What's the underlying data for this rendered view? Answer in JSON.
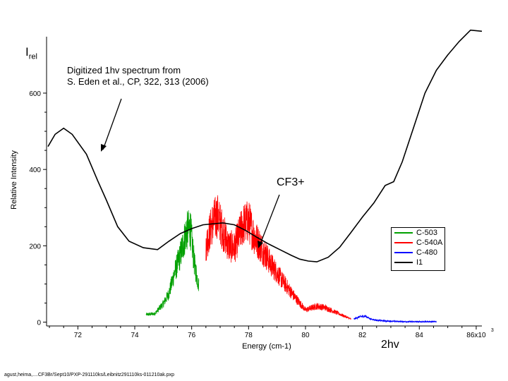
{
  "annotations": {
    "irel_main": "I",
    "irel_sub": "rel",
    "note_line1": "Digitized 1hv spectrum from",
    "note_line2": "S. Eden et al., CP, 322, 313 (2006)",
    "cf3": "CF3+",
    "two_hv": "2hv",
    "footer": "agust,heima,....CF3Br/Sept10/PXP-291110ks/Leibnitz291110ks-011210ak.pxp"
  },
  "colors": {
    "C-503": "#00a000",
    "C-540A": "#ff0000",
    "C-480": "#0000ff",
    "I1": "#000000"
  },
  "chart_data": {
    "type": "line",
    "xlabel": "Energy (cm-1)",
    "ylabel": "Relative Intensity",
    "x_multiplier_label": "x10",
    "x_multiplier_exp": "3",
    "xlim": [
      70.9,
      86.2
    ],
    "ylim": [
      -10,
      770
    ],
    "x_ticks": [
      72,
      74,
      76,
      78,
      80,
      82,
      84,
      86
    ],
    "x_tick_labels": [
      "72",
      "74",
      "76",
      "78",
      "80",
      "82",
      "84",
      "86"
    ],
    "y_ticks": [
      0,
      200,
      400,
      600
    ],
    "y_tick_labels": [
      "0",
      "200",
      "400",
      "600"
    ],
    "legend_position": "lower-right",
    "series": [
      {
        "name": "I1",
        "style": "smooth",
        "x": [
          70.95,
          71.2,
          71.5,
          71.8,
          72.3,
          72.7,
          73.0,
          73.4,
          73.8,
          74.3,
          74.8,
          75.2,
          75.6,
          76.0,
          76.4,
          76.8,
          77.1,
          77.5,
          77.9,
          78.3,
          78.7,
          79.1,
          79.5,
          79.8,
          80.1,
          80.4,
          80.8,
          81.2,
          81.6,
          82.0,
          82.4,
          82.8,
          83.1,
          83.4,
          83.8,
          84.2,
          84.6,
          85.0,
          85.4,
          85.8,
          86.2
        ],
        "y": [
          460,
          492,
          508,
          492,
          440,
          370,
          320,
          250,
          212,
          195,
          190,
          212,
          232,
          245,
          255,
          258,
          260,
          255,
          240,
          222,
          205,
          190,
          175,
          165,
          160,
          158,
          170,
          196,
          235,
          275,
          312,
          358,
          368,
          420,
          510,
          600,
          660,
          700,
          735,
          765,
          762
        ]
      },
      {
        "name": "C-503",
        "style": "noisy",
        "x": [
          74.4,
          74.7,
          75.0,
          75.2,
          75.4,
          75.6,
          75.8,
          75.95,
          76.1,
          76.25
        ],
        "y": [
          20,
          22,
          48,
          75,
          130,
          175,
          235,
          248,
          150,
          95
        ]
      },
      {
        "name": "C-540A",
        "style": "noisy",
        "x": [
          76.5,
          76.7,
          76.9,
          77.1,
          77.3,
          77.5,
          77.8,
          78.0,
          78.2,
          78.5,
          78.8,
          79.2,
          79.6,
          80.0,
          80.4,
          80.7,
          81.0,
          81.3,
          81.6
        ],
        "y": [
          200,
          255,
          280,
          238,
          200,
          195,
          255,
          265,
          225,
          190,
          150,
          108,
          68,
          32,
          42,
          38,
          28,
          18,
          8
        ]
      },
      {
        "name": "C-480",
        "style": "noisy",
        "x": [
          81.7,
          81.9,
          82.1,
          82.3,
          82.5,
          82.8,
          83.2,
          83.6,
          84.0,
          84.6
        ],
        "y": [
          8,
          14,
          16,
          8,
          5,
          3,
          2,
          1,
          1,
          1
        ]
      }
    ],
    "legend_entries": [
      "C-503",
      "C-540A",
      "C-480",
      "I1"
    ]
  }
}
